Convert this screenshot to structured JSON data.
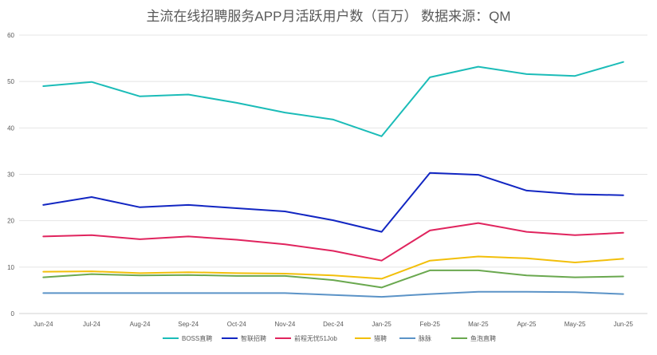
{
  "chart_data": {
    "type": "line",
    "title": "主流在线招聘服务APP月活跃用户数（百万） 数据来源：QM",
    "categories": [
      "Jun-24",
      "Jul-24",
      "Aug-24",
      "Sep-24",
      "Oct-24",
      "Nov-24",
      "Dec-24",
      "Jan-25",
      "Feb-25",
      "Mar-25",
      "Apr-25",
      "May-25",
      "Jun-25"
    ],
    "ylim": [
      0,
      60
    ],
    "yticks": [
      0,
      10,
      20,
      30,
      40,
      50,
      60
    ],
    "grid": true,
    "legend_position": "bottom",
    "series": [
      {
        "name": "BOSS直聘",
        "color": "#1bbcb8",
        "values": [
          49.0,
          49.9,
          46.8,
          47.2,
          45.4,
          43.3,
          41.8,
          38.2,
          50.9,
          53.2,
          51.6,
          51.2,
          54.2
        ]
      },
      {
        "name": "智联招聘",
        "color": "#1226c2",
        "values": [
          23.4,
          25.1,
          22.9,
          23.4,
          22.7,
          22.0,
          20.1,
          17.6,
          30.3,
          29.9,
          26.5,
          25.7,
          25.5
        ]
      },
      {
        "name": "前程无忧51Job",
        "color": "#e0245e",
        "values": [
          16.6,
          16.9,
          16.0,
          16.6,
          15.9,
          14.9,
          13.5,
          11.4,
          17.9,
          19.5,
          17.6,
          16.9,
          17.4
        ]
      },
      {
        "name": "猎聘",
        "color": "#f2bf0a",
        "values": [
          9.0,
          9.1,
          8.7,
          8.9,
          8.7,
          8.6,
          8.2,
          7.5,
          11.4,
          12.3,
          11.9,
          11.0,
          11.8
        ]
      },
      {
        "name": "脉脉",
        "color": "#5b93c7",
        "values": [
          4.4,
          4.4,
          4.4,
          4.4,
          4.4,
          4.4,
          4.0,
          3.6,
          4.2,
          4.7,
          4.7,
          4.6,
          4.2
        ]
      },
      {
        "name": "鱼泡直聘",
        "color": "#6aa84f",
        "values": [
          7.8,
          8.5,
          8.2,
          8.3,
          8.1,
          8.1,
          7.2,
          5.6,
          9.3,
          9.3,
          8.2,
          7.8,
          8.0
        ]
      }
    ]
  }
}
